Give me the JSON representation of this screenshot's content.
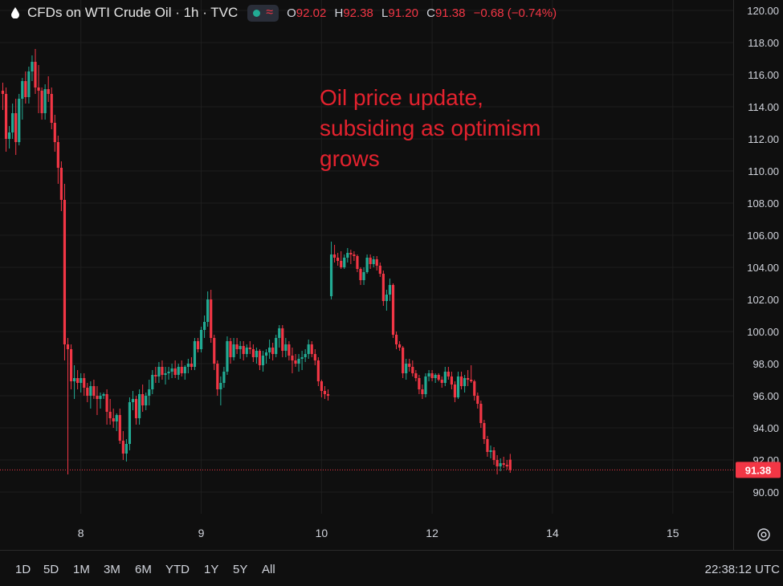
{
  "header": {
    "title": "CFDs on WTI Crude Oil · 1h · TVC",
    "ohlc": {
      "o_label": "O",
      "o_value": "92.02",
      "h_label": "H",
      "h_value": "92.38",
      "l_label": "L",
      "l_value": "91.20",
      "c_label": "C",
      "c_value": "91.38",
      "change": "−0.68 (−0.74%)"
    }
  },
  "annotation": {
    "line1": "Oil price update,",
    "line2": "subsiding as optimism",
    "line3": "grows"
  },
  "bottom_bar": {
    "ranges": [
      "1D",
      "5D",
      "1M",
      "3M",
      "6M",
      "YTD",
      "1Y",
      "5Y",
      "All"
    ],
    "clock": "22:38:12 UTC"
  },
  "colors": {
    "background": "#0f0f0f",
    "up": "#22ab94",
    "down": "#f23645",
    "grid": "#1e1e1e",
    "axis_text": "#d1d4dc",
    "annotation": "#e3222e"
  },
  "chart_data": {
    "type": "candlestick",
    "ylim": [
      89.0,
      121.0
    ],
    "y_ticks": [
      "90.00",
      "92.00",
      "94.00",
      "96.00",
      "98.00",
      "100.00",
      "102.00",
      "104.00",
      "106.00",
      "108.00",
      "110.00",
      "112.00",
      "114.00",
      "116.00",
      "118.00",
      "120.00"
    ],
    "x_ticks": [
      {
        "label": "8",
        "index": 24
      },
      {
        "label": "9",
        "index": 61
      },
      {
        "label": "10",
        "index": 98
      },
      {
        "label": "12",
        "index": 132
      },
      {
        "label": "14",
        "index": 169
      },
      {
        "label": "15",
        "index": 206
      }
    ],
    "last_price": "91.38",
    "last_price_value": 91.38,
    "candles": [
      [
        115.0,
        115.5,
        113.8,
        114.8
      ],
      [
        114.8,
        115.2,
        111.2,
        112.0
      ],
      [
        112.0,
        112.8,
        111.4,
        112.4
      ],
      [
        112.4,
        114.2,
        112.0,
        113.6
      ],
      [
        113.6,
        114.5,
        111.0,
        111.8
      ],
      [
        111.8,
        114.8,
        111.6,
        114.5
      ],
      [
        114.5,
        115.8,
        113.2,
        115.6
      ],
      [
        115.6,
        116.2,
        114.2,
        114.6
      ],
      [
        114.6,
        116.5,
        114.2,
        116.2
      ],
      [
        116.2,
        117.2,
        115.6,
        116.8
      ],
      [
        116.8,
        117.6,
        114.8,
        115.2
      ],
      [
        115.2,
        116.6,
        113.6,
        115.0
      ],
      [
        115.0,
        115.2,
        113.2,
        113.6
      ],
      [
        113.6,
        115.4,
        113.2,
        115.1
      ],
      [
        115.1,
        115.9,
        114.3,
        114.8
      ],
      [
        114.8,
        115.2,
        112.6,
        113.0
      ],
      [
        113.0,
        113.5,
        111.2,
        111.8
      ],
      [
        111.8,
        112.2,
        109.2,
        110.2
      ],
      [
        110.2,
        110.6,
        107.5,
        108.2
      ],
      [
        108.2,
        109.2,
        98.2,
        99.2
      ],
      [
        99.2,
        99.6,
        91.1,
        98.9
      ],
      [
        98.9,
        99.2,
        96.4,
        96.9
      ],
      [
        96.9,
        97.9,
        95.8,
        97.1
      ],
      [
        97.1,
        97.6,
        96.4,
        96.8
      ],
      [
        96.8,
        97.4,
        96.2,
        97.1
      ],
      [
        97.1,
        97.4,
        96.0,
        96.5
      ],
      [
        96.5,
        96.8,
        95.6,
        96.0
      ],
      [
        96.0,
        96.9,
        95.2,
        96.6
      ],
      [
        96.6,
        97.0,
        95.8,
        96.0
      ],
      [
        96.0,
        96.6,
        94.8,
        95.8
      ],
      [
        95.8,
        96.2,
        95.2,
        96.0
      ],
      [
        96.0,
        96.2,
        95.8,
        96.1
      ],
      [
        96.1,
        96.4,
        94.2,
        95.0
      ],
      [
        95.0,
        95.8,
        94.2,
        94.6
      ],
      [
        94.6,
        95.2,
        94.0,
        94.4
      ],
      [
        94.4,
        94.9,
        93.8,
        94.8
      ],
      [
        94.8,
        95.2,
        93.0,
        93.2
      ],
      [
        93.2,
        93.8,
        92.0,
        92.4
      ],
      [
        92.4,
        93.3,
        91.9,
        93.0
      ],
      [
        93.0,
        95.9,
        92.6,
        95.6
      ],
      [
        95.6,
        96.3,
        95.1,
        95.8
      ],
      [
        95.8,
        96.0,
        94.2,
        94.6
      ],
      [
        94.6,
        96.4,
        94.2,
        96.1
      ],
      [
        96.1,
        96.7,
        95.0,
        95.4
      ],
      [
        95.4,
        96.2,
        95.1,
        96.0
      ],
      [
        96.0,
        97.0,
        95.4,
        96.4
      ],
      [
        96.4,
        97.6,
        96.1,
        97.3
      ],
      [
        97.3,
        97.8,
        96.8,
        97.2
      ],
      [
        97.2,
        98.1,
        96.8,
        97.8
      ],
      [
        97.8,
        98.2,
        97.0,
        97.3
      ],
      [
        97.3,
        97.8,
        96.7,
        97.4
      ],
      [
        97.4,
        97.8,
        97.0,
        97.5
      ],
      [
        97.5,
        98.0,
        97.1,
        97.7
      ],
      [
        97.7,
        98.2,
        97.1,
        97.3
      ],
      [
        97.3,
        98.0,
        97.0,
        97.8
      ],
      [
        97.8,
        98.2,
        97.2,
        97.4
      ],
      [
        97.4,
        97.9,
        97.0,
        97.8
      ],
      [
        97.8,
        98.3,
        97.4,
        98.0
      ],
      [
        98.0,
        98.4,
        97.6,
        97.8
      ],
      [
        97.8,
        99.6,
        97.6,
        99.4
      ],
      [
        99.4,
        99.6,
        98.7,
        98.9
      ],
      [
        98.9,
        100.3,
        98.7,
        100.1
      ],
      [
        100.1,
        101.0,
        99.6,
        100.6
      ],
      [
        100.6,
        102.5,
        100.3,
        102.0
      ],
      [
        102.0,
        102.6,
        99.3,
        99.6
      ],
      [
        99.6,
        99.8,
        97.6,
        98.0
      ],
      [
        98.0,
        98.2,
        96.0,
        96.4
      ],
      [
        96.4,
        97.2,
        95.4,
        96.8
      ],
      [
        96.8,
        97.8,
        96.5,
        97.5
      ],
      [
        97.5,
        99.7,
        97.3,
        99.4
      ],
      [
        99.4,
        99.6,
        98.0,
        98.4
      ],
      [
        98.4,
        99.6,
        98.2,
        99.2
      ],
      [
        99.2,
        99.6,
        98.6,
        98.9
      ],
      [
        98.9,
        99.4,
        98.3,
        99.1
      ],
      [
        99.1,
        99.4,
        98.2,
        98.6
      ],
      [
        98.6,
        99.2,
        98.4,
        99.0
      ],
      [
        99.0,
        99.4,
        98.6,
        98.9
      ],
      [
        98.9,
        99.2,
        98.1,
        98.4
      ],
      [
        98.4,
        99.0,
        98.0,
        98.8
      ],
      [
        98.8,
        98.9,
        97.6,
        97.9
      ],
      [
        97.9,
        98.8,
        97.5,
        98.5
      ],
      [
        98.5,
        98.9,
        98.0,
        98.7
      ],
      [
        98.7,
        99.5,
        98.3,
        99.0
      ],
      [
        99.0,
        99.3,
        98.2,
        98.6
      ],
      [
        98.6,
        99.8,
        98.4,
        99.6
      ],
      [
        99.6,
        100.4,
        99.0,
        100.2
      ],
      [
        100.2,
        100.4,
        98.4,
        98.8
      ],
      [
        98.8,
        99.6,
        98.4,
        99.2
      ],
      [
        99.2,
        99.4,
        98.2,
        98.5
      ],
      [
        98.5,
        99.0,
        97.4,
        98.2
      ],
      [
        98.2,
        98.6,
        97.8,
        98.0
      ],
      [
        98.0,
        98.6,
        97.5,
        98.3
      ],
      [
        98.3,
        98.8,
        97.6,
        98.4
      ],
      [
        98.4,
        98.9,
        98.1,
        98.6
      ],
      [
        98.6,
        99.5,
        98.3,
        99.2
      ],
      [
        99.2,
        99.4,
        98.4,
        98.6
      ],
      [
        98.6,
        98.9,
        97.9,
        98.2
      ],
      [
        98.2,
        98.4,
        96.6,
        96.9
      ],
      [
        96.9,
        97.0,
        95.9,
        96.3
      ],
      [
        96.3,
        96.6,
        95.8,
        96.1
      ],
      [
        96.1,
        96.4,
        95.7,
        96.0
      ],
      [
        102.2,
        105.6,
        102.0,
        104.8
      ],
      [
        104.8,
        105.4,
        104.3,
        104.6
      ],
      [
        104.6,
        104.9,
        104.1,
        104.4
      ],
      [
        104.4,
        105.0,
        103.9,
        104.0
      ],
      [
        104.0,
        104.8,
        103.9,
        104.6
      ],
      [
        104.6,
        105.2,
        104.3,
        104.9
      ],
      [
        104.9,
        105.1,
        104.2,
        104.8
      ],
      [
        104.8,
        105.0,
        104.4,
        104.7
      ],
      [
        104.7,
        104.8,
        103.7,
        103.9
      ],
      [
        103.9,
        104.0,
        102.9,
        103.2
      ],
      [
        103.2,
        104.0,
        102.9,
        103.7
      ],
      [
        103.7,
        104.8,
        103.6,
        104.6
      ],
      [
        104.6,
        104.8,
        103.9,
        104.2
      ],
      [
        104.2,
        104.7,
        104.0,
        104.5
      ],
      [
        104.5,
        104.7,
        103.8,
        104.1
      ],
      [
        104.1,
        104.3,
        103.4,
        103.6
      ],
      [
        103.6,
        103.8,
        101.6,
        101.9
      ],
      [
        101.9,
        102.6,
        101.3,
        102.3
      ],
      [
        102.3,
        103.3,
        101.9,
        102.9
      ],
      [
        102.9,
        103.0,
        99.6,
        99.8
      ],
      [
        99.8,
        100.0,
        98.9,
        99.2
      ],
      [
        99.2,
        99.4,
        98.8,
        99.0
      ],
      [
        99.0,
        99.1,
        97.1,
        97.4
      ],
      [
        97.4,
        98.3,
        97.0,
        98.0
      ],
      [
        98.0,
        98.3,
        97.5,
        97.8
      ],
      [
        97.8,
        98.2,
        97.2,
        97.4
      ],
      [
        97.4,
        97.6,
        96.9,
        97.1
      ],
      [
        97.1,
        97.3,
        96.1,
        96.4
      ],
      [
        96.4,
        96.7,
        95.8,
        96.1
      ],
      [
        96.1,
        97.4,
        95.9,
        97.2
      ],
      [
        97.2,
        97.6,
        96.9,
        97.4
      ],
      [
        97.4,
        97.6,
        96.9,
        97.1
      ],
      [
        97.1,
        97.4,
        96.8,
        97.3
      ],
      [
        97.3,
        97.4,
        96.9,
        97.0
      ],
      [
        97.0,
        97.2,
        96.5,
        96.8
      ],
      [
        96.8,
        97.8,
        96.6,
        97.5
      ],
      [
        97.5,
        97.8,
        97.0,
        97.2
      ],
      [
        97.2,
        97.5,
        96.4,
        96.7
      ],
      [
        96.7,
        96.9,
        95.6,
        95.9
      ],
      [
        95.9,
        97.5,
        95.8,
        97.2
      ],
      [
        97.2,
        97.5,
        96.4,
        96.6
      ],
      [
        96.6,
        97.3,
        96.2,
        97.1
      ],
      [
        97.1,
        97.6,
        96.6,
        97.0
      ],
      [
        97.0,
        97.9,
        96.8,
        96.9
      ],
      [
        96.9,
        97.0,
        95.7,
        96.0
      ],
      [
        96.0,
        96.2,
        95.2,
        95.5
      ],
      [
        95.5,
        95.7,
        94.0,
        94.3
      ],
      [
        94.3,
        94.5,
        93.0,
        93.3
      ],
      [
        93.3,
        93.5,
        92.2,
        92.5
      ],
      [
        92.5,
        92.9,
        92.1,
        92.6
      ],
      [
        92.6,
        92.8,
        91.7,
        92.0
      ],
      [
        92.0,
        92.3,
        91.1,
        91.6
      ],
      [
        91.6,
        92.1,
        91.3,
        91.8
      ],
      [
        91.8,
        92.2,
        91.5,
        91.7
      ],
      [
        91.7,
        92.0,
        91.4,
        91.6
      ],
      [
        92.02,
        92.38,
        91.2,
        91.38
      ]
    ]
  }
}
